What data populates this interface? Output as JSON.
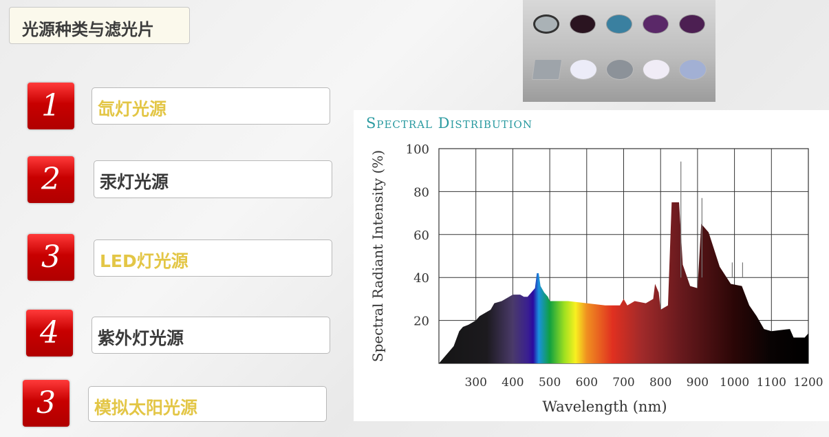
{
  "slide": {
    "title": "光源种类与滤光片",
    "items": [
      {
        "number": "1",
        "label": "氙灯光源",
        "color": "#e3c646"
      },
      {
        "number": "2",
        "label": "汞灯光源",
        "color": "#3a3a3a"
      },
      {
        "number": "3",
        "label": "LED灯光源",
        "color": "#e3c646"
      },
      {
        "number": "4",
        "label": "紫外灯光源",
        "color": "#3a3a3a"
      },
      {
        "number": "3",
        "label": "模拟太阳光源",
        "color": "#e3c646"
      }
    ],
    "badge_color": "#c80000"
  },
  "filters_photo": {
    "disc_colors_row1": [
      "#aab2b6",
      "#2a1420",
      "#3a80a0",
      "#5a2868",
      "#4c1f52"
    ],
    "disc_colors_row2": [
      "#9ea4aa",
      "#ececf8",
      "#8c9299",
      "#f0ecf6",
      "#a2b0d4"
    ]
  },
  "chart_data": {
    "type": "area",
    "title": "Spectral Distribution",
    "xlabel": "Wavelength (nm)",
    "ylabel": "Spectral Radiant Intensity (%)",
    "xlim": [
      200,
      1200
    ],
    "ylim": [
      0,
      100
    ],
    "x_ticks": [
      "300",
      "400",
      "500",
      "600",
      "700",
      "800",
      "900",
      "1000",
      "1100",
      "1200"
    ],
    "y_ticks": [
      "20",
      "40",
      "60",
      "80",
      "100"
    ],
    "grid": true,
    "fill": "visible-spectrum gradient",
    "series": [
      {
        "x": [
          200,
          240,
          255,
          265,
          280,
          300,
          310,
          340,
          350,
          370,
          390,
          400,
          420,
          430,
          440,
          450,
          460,
          465,
          470,
          475,
          485,
          495,
          500,
          520,
          550,
          600,
          650,
          690,
          700,
          710,
          730,
          760,
          770,
          780,
          785,
          795,
          800,
          820,
          830,
          850,
          860,
          880,
          900,
          910,
          930,
          960,
          990,
          1020,
          1040,
          1060,
          1080,
          1100,
          1150,
          1160,
          1190,
          1200
        ],
        "y": [
          0,
          8,
          15,
          17,
          18,
          20,
          22,
          25,
          28,
          29,
          31,
          32,
          32,
          31,
          31,
          33,
          35,
          42,
          42,
          36,
          33,
          31,
          29,
          29,
          29,
          28,
          27,
          27,
          30,
          27,
          29,
          28,
          29,
          30,
          37,
          33,
          25,
          27,
          75,
          75,
          46,
          36,
          35,
          65,
          61,
          45,
          37,
          36,
          27,
          22,
          16,
          15,
          16,
          12,
          12,
          14
        ]
      }
    ],
    "spikes": [
      {
        "x": 855,
        "y": 94
      },
      {
        "x": 912,
        "y": 77
      },
      {
        "x": 994,
        "y": 47
      },
      {
        "x": 1022,
        "y": 47
      }
    ]
  }
}
